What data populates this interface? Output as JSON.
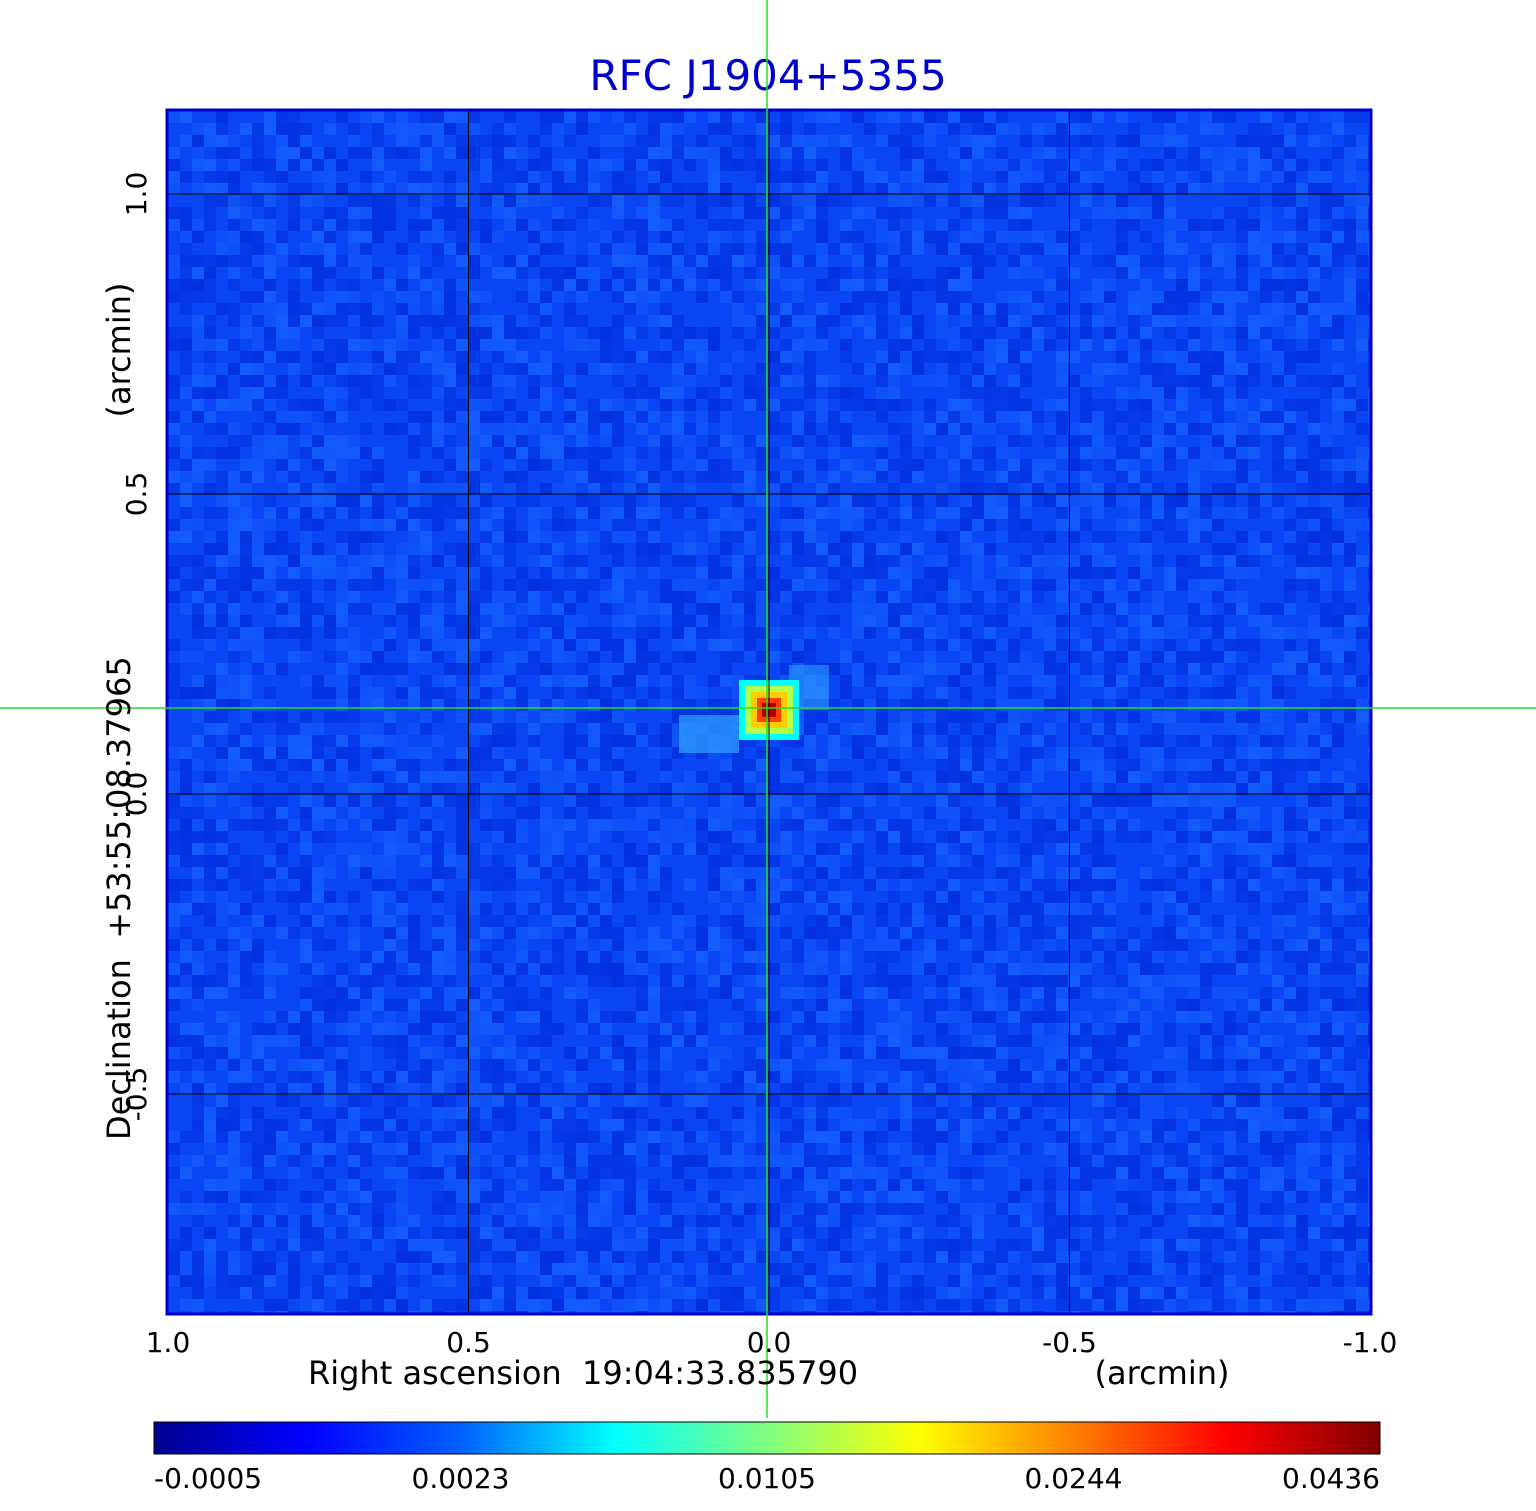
{
  "chart_data": {
    "type": "heatmap",
    "title": "RFC J1904+5355",
    "xlabel": "Right ascension  19:04:33.835790",
    "xlabel_unit": "(arcmin)",
    "ylabel": "Declination  +53:55:08.37965",
    "ylabel_unit": "(arcmin)",
    "xlim": [
      1.0,
      -1.0
    ],
    "ylim": [
      -0.87,
      1.14
    ],
    "x_ticks": [
      {
        "value": 1.0,
        "label": "1.0"
      },
      {
        "value": 0.5,
        "label": "0.5"
      },
      {
        "value": 0.0,
        "label": "0.0"
      },
      {
        "value": -0.5,
        "label": "-0.5"
      },
      {
        "value": -1.0,
        "label": "-1.0"
      }
    ],
    "y_ticks": [
      {
        "value": 1.0,
        "label": "1.0"
      },
      {
        "value": 0.5,
        "label": "0.5"
      },
      {
        "value": 0.0,
        "label": "0.0"
      },
      {
        "value": -0.5,
        "label": "-0.5"
      }
    ],
    "grid": true,
    "crosshair": {
      "x": 0.0,
      "y": 0.145,
      "color": "#22dd22"
    },
    "source": {
      "x": 0.0,
      "y": 0.14,
      "peak": 0.0436
    },
    "colorbar": {
      "colormap": "jet",
      "ticks": [
        "-0.0005",
        "0.0023",
        "0.0105",
        "0.0244",
        "0.0436"
      ]
    },
    "colors": {
      "title": "#0000cc",
      "frame": "#0000cc",
      "background_map": "#0a46f5"
    }
  }
}
